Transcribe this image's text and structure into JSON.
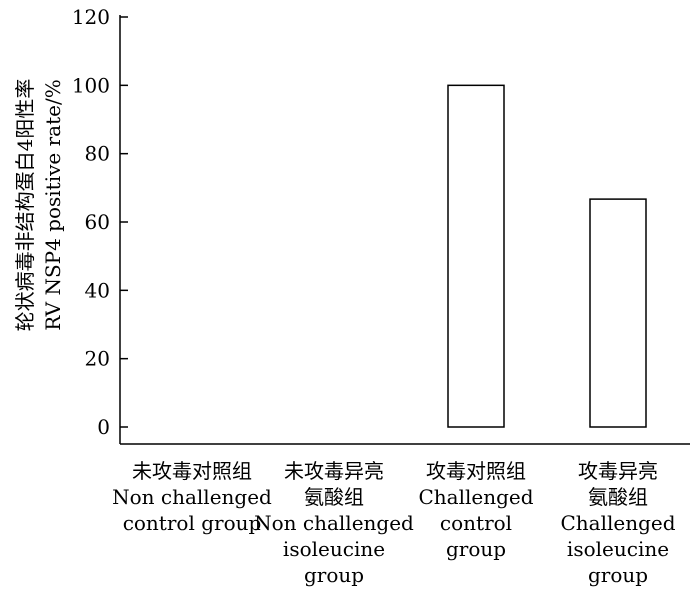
{
  "chart_data": {
    "type": "bar",
    "categories": [
      [
        "未攻毒对照组",
        "Non challenged",
        "control group"
      ],
      [
        "未攻毒异亮",
        "氨酸组",
        "Non challenged",
        "isoleucine",
        "group"
      ],
      [
        "攻毒对照组",
        "Challenged",
        "control",
        "group"
      ],
      [
        "攻毒异亮",
        "氨酸组",
        "Challenged",
        "isoleucine",
        "group"
      ]
    ],
    "values": [
      0,
      0,
      100,
      66.7
    ],
    "ylabel": [
      "轮状病毒非结构蛋白4阳性率",
      "RV NSP4 positive rate/%"
    ],
    "ylim": [
      0,
      120
    ],
    "yticks": [
      0,
      20,
      40,
      60,
      80,
      100,
      120
    ],
    "grid": false,
    "legend": "none"
  }
}
